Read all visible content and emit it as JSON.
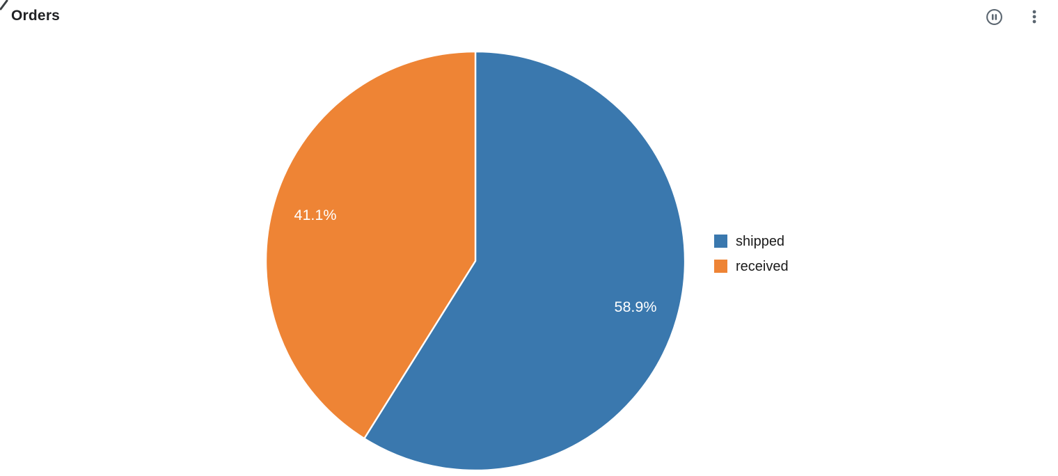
{
  "header": {
    "title": "Orders",
    "icons": [
      {
        "name": "pause-circle-icon"
      },
      {
        "name": "kebab-menu-icon"
      }
    ]
  },
  "chart_data": {
    "type": "pie",
    "title": "Orders",
    "series": [
      {
        "name": "shipped",
        "value": 58.9,
        "label": "58.9%",
        "color": "#3a78ae"
      },
      {
        "name": "received",
        "value": 41.1,
        "label": "41.1%",
        "color": "#ee8435"
      }
    ],
    "start_angle_deg": 0,
    "direction": "clockwise",
    "labels_inside": true,
    "label_color": "#ffffff",
    "legend_position": "right",
    "legend_entries": [
      "shipped",
      "received"
    ]
  },
  "palette": {
    "background": "#ffffff",
    "title_text": "#202124",
    "legend_text": "#1a1a1a",
    "icon_gray": "#5b6670",
    "slice_separator": "#ffffff"
  }
}
